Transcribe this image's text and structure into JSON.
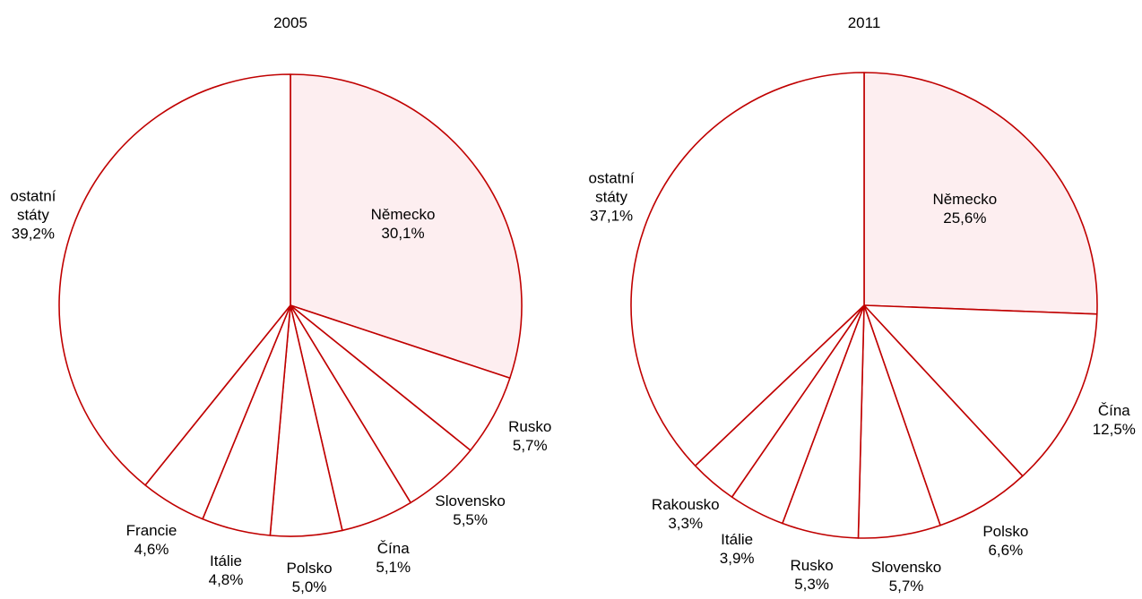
{
  "chart_data": [
    {
      "type": "pie",
      "title": "2005",
      "categories": [
        "Německo",
        "Rusko",
        "Slovensko",
        "Čína",
        "Polsko",
        "Itálie",
        "Francie",
        "ostatní státy"
      ],
      "values": [
        30.1,
        5.7,
        5.5,
        5.1,
        5.0,
        4.8,
        4.6,
        39.2
      ],
      "value_labels": [
        "30,1%",
        "5,7%",
        "5,5%",
        "5,1%",
        "5,0%",
        "4,8%",
        "4,6%",
        "39,2%"
      ],
      "colors": [
        "#fdeef0",
        "#ffffff",
        "#ffffff",
        "#ffffff",
        "#ffffff",
        "#ffffff",
        "#ffffff",
        "#ffffff"
      ],
      "edge_color": "#c00000"
    },
    {
      "type": "pie",
      "title": "2011",
      "categories": [
        "Německo",
        "Čína",
        "Polsko",
        "Slovensko",
        "Rusko",
        "Itálie",
        "Rakousko",
        "ostatní státy"
      ],
      "values": [
        25.6,
        12.5,
        6.6,
        5.7,
        5.3,
        3.9,
        3.3,
        37.1
      ],
      "value_labels": [
        "25,6%",
        "12,5%",
        "6,6%",
        "5,7%",
        "5,3%",
        "3,9%",
        "3,3%",
        "37,1%"
      ],
      "colors": [
        "#fdeef0",
        "#ffffff",
        "#ffffff",
        "#ffffff",
        "#ffffff",
        "#ffffff",
        "#ffffff",
        "#ffffff"
      ],
      "edge_color": "#c00000"
    }
  ]
}
